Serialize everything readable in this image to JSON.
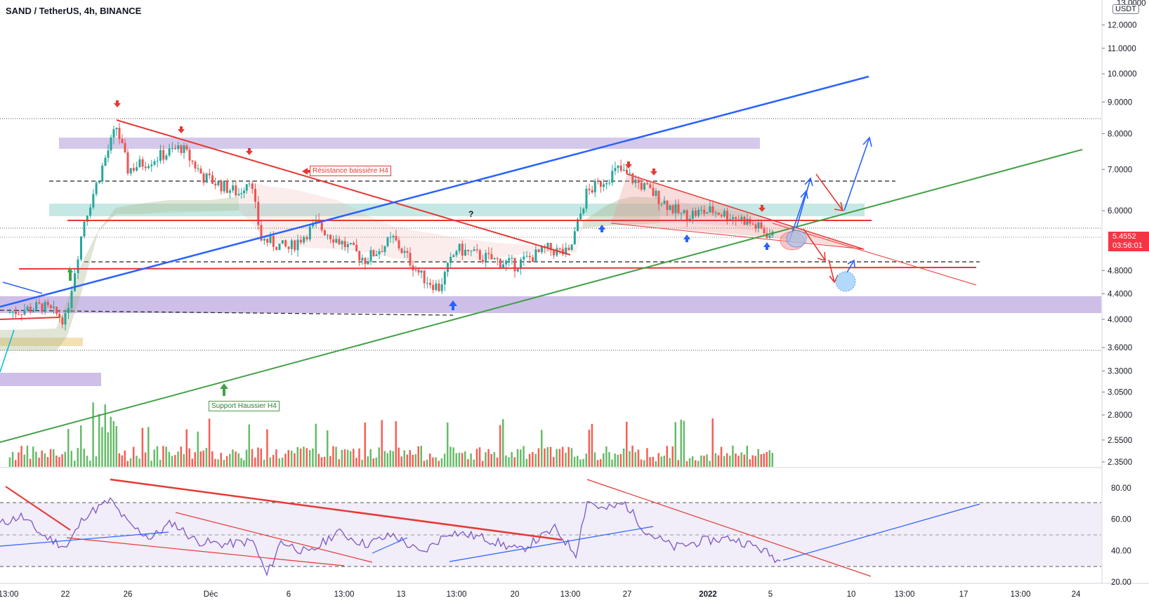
{
  "header": {
    "title": "SAND / TetherUS, 4h, BINANCE"
  },
  "price_axis": {
    "unit_label": "USDT",
    "ticks": [
      "12.0000",
      "11.0000",
      "10.0000",
      "9.0000",
      "8.0000",
      "7.0000",
      "6.0000",
      "4.8000",
      "4.4000",
      "4.0000",
      "3.6000",
      "3.3000",
      "3.0500",
      "2.8000",
      "2.5500",
      "2.3500"
    ],
    "top_partial": "13.0000"
  },
  "last_price": {
    "value": "5.4552",
    "countdown": "03:56:01"
  },
  "rsi_axis": {
    "ticks": [
      "80.00",
      "60.00",
      "40.00",
      "20.00"
    ]
  },
  "time_axis": {
    "ticks": [
      "13:00",
      "22",
      "26",
      "Déc",
      "6",
      "13:00",
      "13",
      "13:00",
      "20",
      "13:00",
      "27",
      "2022",
      "5",
      "10",
      "13:00",
      "17",
      "13:00",
      "24"
    ]
  },
  "annotations": {
    "resistance": "Résistance baissière H4",
    "support": "Support Haussier H4",
    "question": "?"
  },
  "colors": {
    "up": "#26a69a",
    "down": "#ef5350",
    "volume_up": "#4caf50",
    "volume_down": "#f44336",
    "red_line": "#e53935",
    "blue_line": "#2962ff",
    "green_line": "#43a047",
    "purple_zone": "#b39ddb",
    "teal_zone": "#80cbc4",
    "badge": "#f23645"
  },
  "chart_data": {
    "type": "line",
    "symbol": "SAND / TetherUS",
    "interval": "4h",
    "exchange": "BINANCE",
    "log_scale": true,
    "y_range": [
      2.3,
      13
    ],
    "rsi_range": [
      20,
      80
    ],
    "last_price": 5.4552,
    "x_ticks": [
      "13:00",
      "22",
      "26",
      "Déc",
      "6",
      "13:00",
      "13",
      "13:00",
      "20",
      "13:00",
      "27",
      "2022",
      "5",
      "10",
      "13:00",
      "17",
      "13:00",
      "24"
    ],
    "approx_close_path": [
      {
        "x": "19 Nov",
        "y": 4.1
      },
      {
        "x": "21 Nov",
        "y": 4.2
      },
      {
        "x": "22 Nov",
        "y": 4.0
      },
      {
        "x": "23 Nov",
        "y": 5.8
      },
      {
        "x": "24 Nov",
        "y": 7.3
      },
      {
        "x": "25 Nov",
        "y": 8.2
      },
      {
        "x": "26 Nov",
        "y": 7.0
      },
      {
        "x": "28 Nov",
        "y": 7.6
      },
      {
        "x": "30 Nov",
        "y": 6.8
      },
      {
        "x": "2 Dec",
        "y": 6.4
      },
      {
        "x": "3 Dec",
        "y": 6.8
      },
      {
        "x": "4 Dec",
        "y": 5.4
      },
      {
        "x": "6 Dec",
        "y": 5.2
      },
      {
        "x": "8 Dec",
        "y": 5.7
      },
      {
        "x": "10 Dec",
        "y": 5.0
      },
      {
        "x": "12 Dec",
        "y": 5.4
      },
      {
        "x": "14 Dec",
        "y": 4.7
      },
      {
        "x": "15 Dec",
        "y": 4.5
      },
      {
        "x": "16 Dec",
        "y": 5.2
      },
      {
        "x": "18 Dec",
        "y": 5.0
      },
      {
        "x": "20 Dec",
        "y": 4.9
      },
      {
        "x": "22 Dec",
        "y": 5.2
      },
      {
        "x": "23 Dec",
        "y": 5.1
      },
      {
        "x": "24 Dec",
        "y": 6.4
      },
      {
        "x": "26 Dec",
        "y": 7.0
      },
      {
        "x": "28 Dec",
        "y": 6.4
      },
      {
        "x": "30 Dec",
        "y": 5.9
      },
      {
        "x": "1 Jan",
        "y": 6.0
      },
      {
        "x": "3 Jan",
        "y": 5.8
      },
      {
        "x": "4 Jan",
        "y": 5.45
      }
    ],
    "levels": {
      "purple_zones": [
        [
          7.6,
          7.9
        ],
        [
          4.1,
          4.35
        ]
      ],
      "teal_zone": [
        5.95,
        6.2
      ],
      "red_horizontals": [
        5.72,
        4.85
      ],
      "dashed_levels": [
        6.75,
        4.95,
        4.05
      ]
    }
  }
}
